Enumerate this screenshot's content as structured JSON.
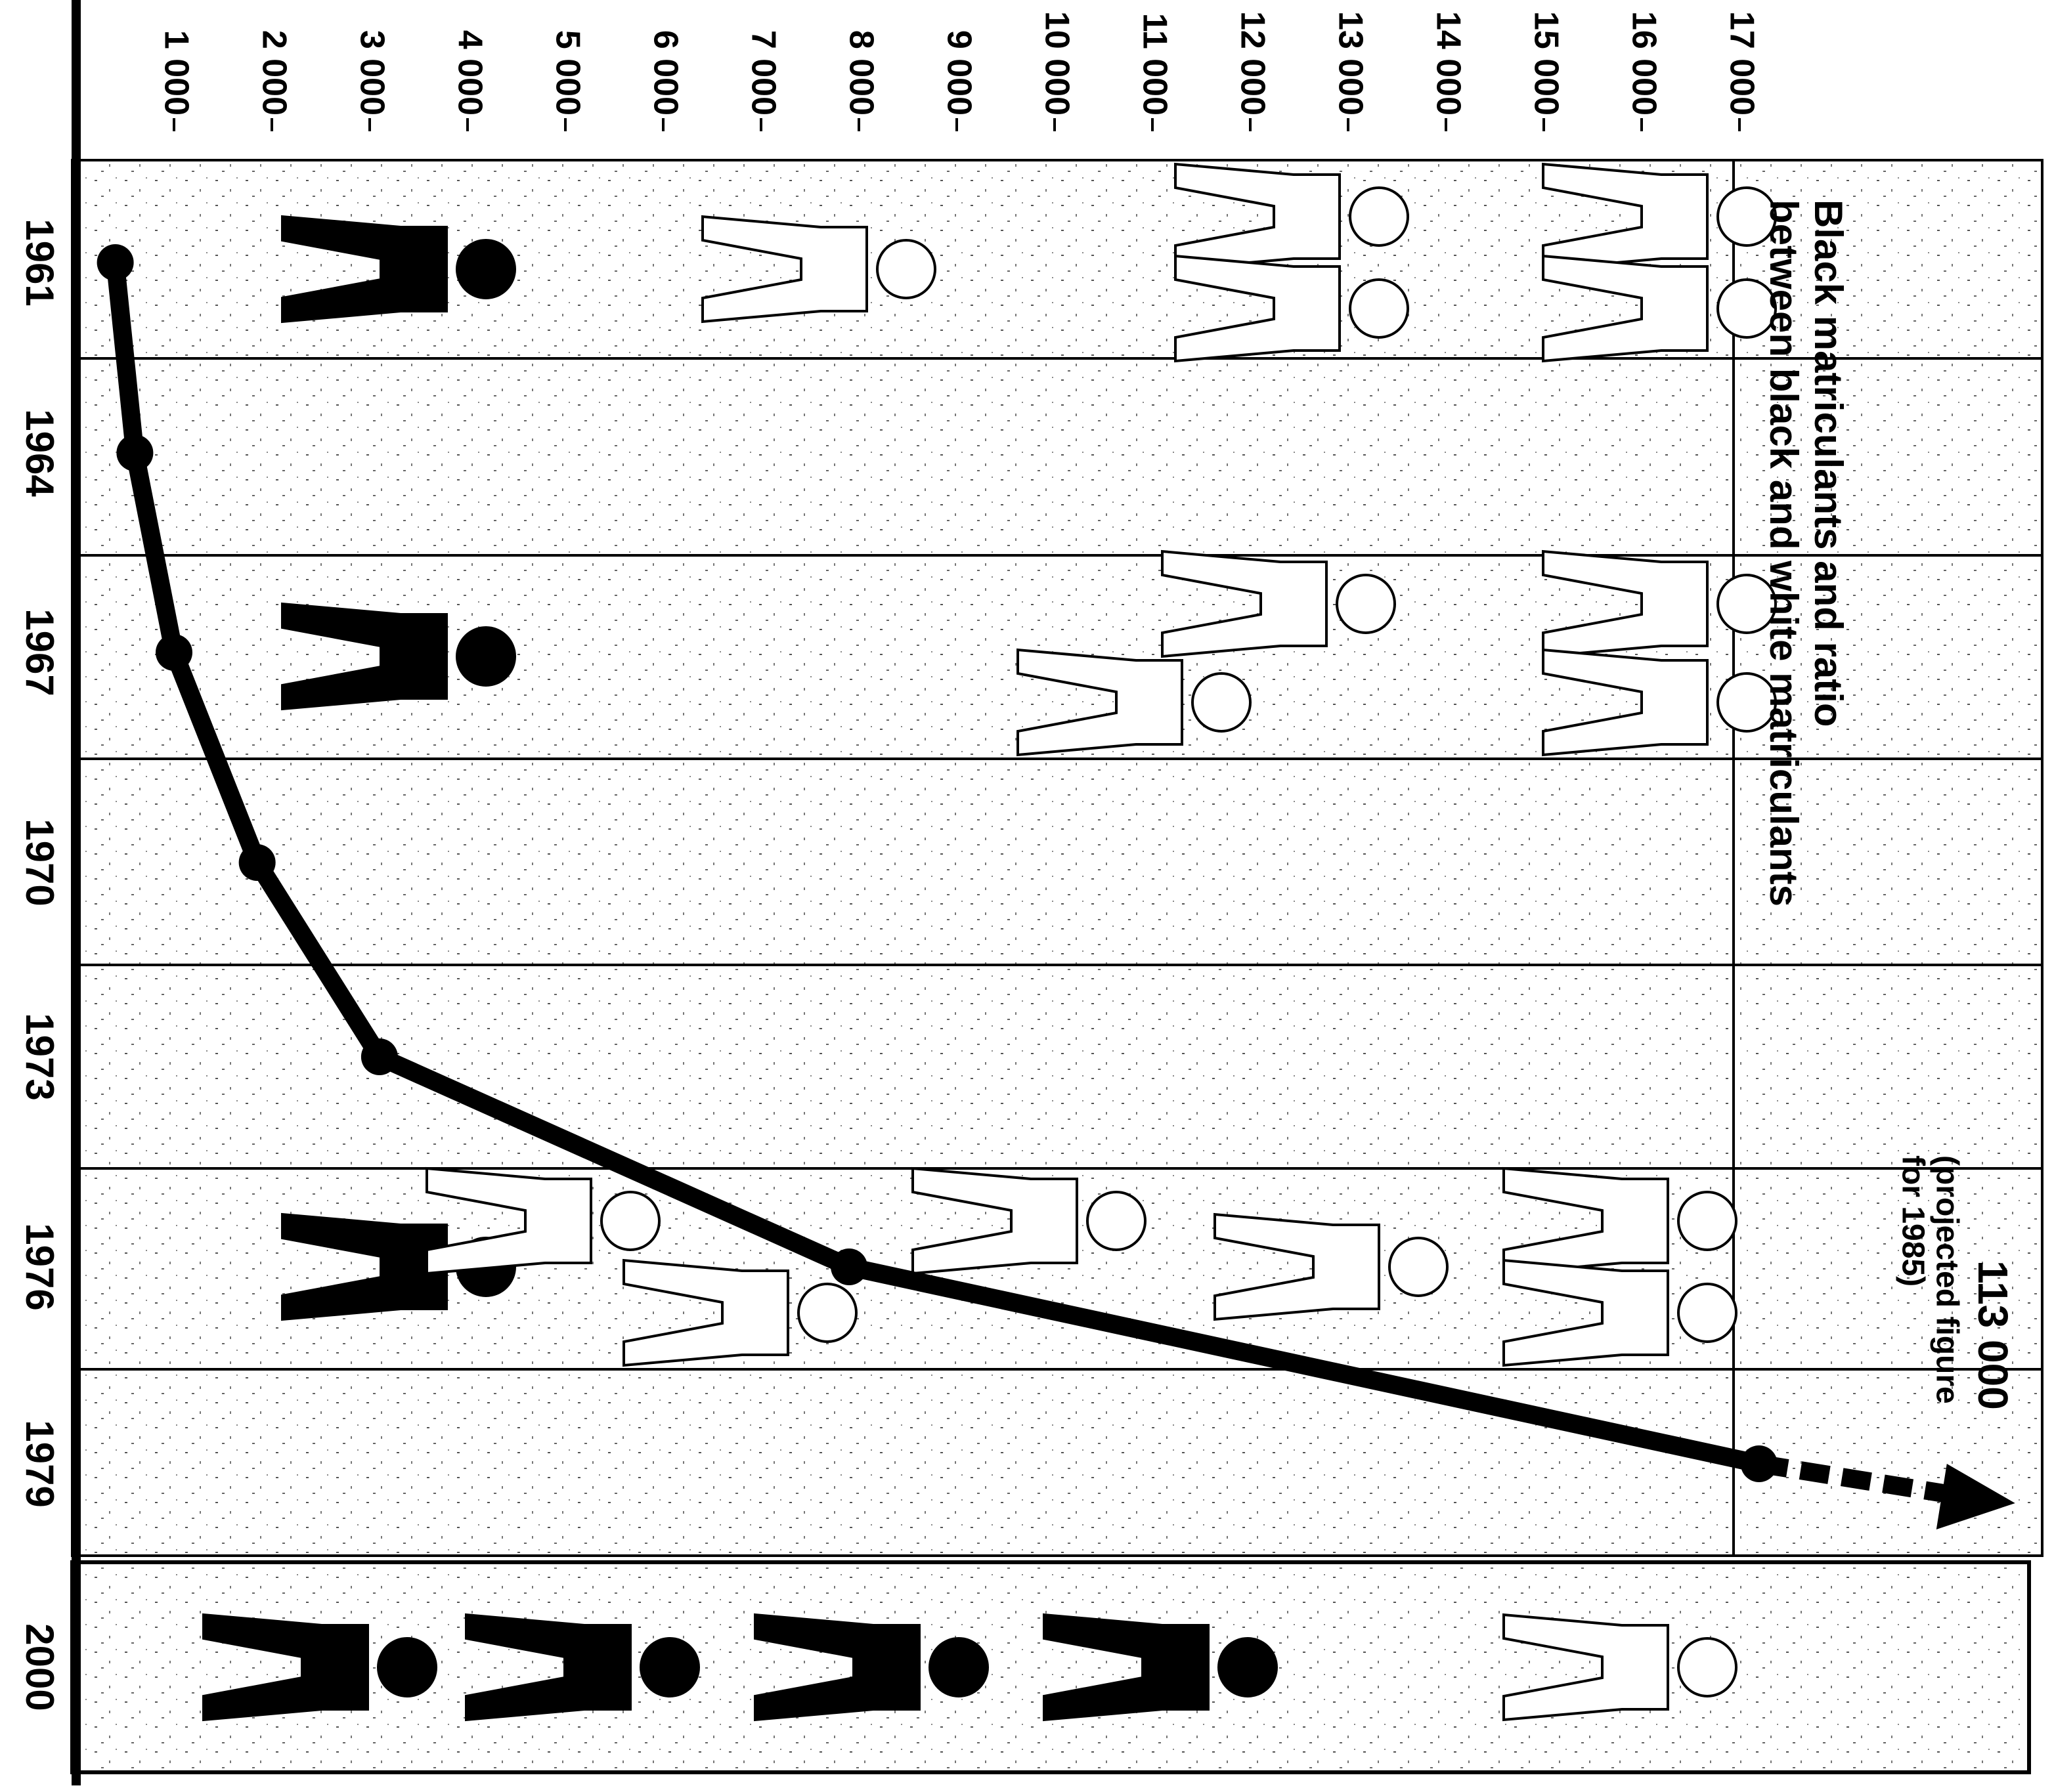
{
  "chart_data": {
    "type": "line",
    "title": "Black matriculants and ratio",
    "subtitle": "between black and white matriculants",
    "categories": [
      "1961",
      "1964",
      "1967",
      "1970",
      "1973",
      "1976",
      "1979",
      "2000"
    ],
    "values": [
      400,
      600,
      1000,
      1850,
      3100,
      7900,
      17200,
      null
    ],
    "color": "#000000",
    "ylim": [
      0,
      20000
    ],
    "yticks": [
      {
        "value": 1000,
        "label": "1 000"
      },
      {
        "value": 2000,
        "label": "2 000"
      },
      {
        "value": 3000,
        "label": "3 000"
      },
      {
        "value": 4000,
        "label": "4 000"
      },
      {
        "value": 5000,
        "label": "5 000"
      },
      {
        "value": 6000,
        "label": "6 000"
      },
      {
        "value": 7000,
        "label": "7 000"
      },
      {
        "value": 8000,
        "label": "8 000"
      },
      {
        "value": 9000,
        "label": "9 000"
      },
      {
        "value": 10000,
        "label": "10 000"
      },
      {
        "value": 11000,
        "label": "11 000"
      },
      {
        "value": 12000,
        "label": "12 000"
      },
      {
        "value": 13000,
        "label": "13 000"
      },
      {
        "value": 14000,
        "label": "14 000"
      },
      {
        "value": 15000,
        "label": "15 000"
      },
      {
        "value": 16000,
        "label": "16 000"
      },
      {
        "value": 17000,
        "label": "17 000"
      }
    ],
    "annotation": {
      "value_text": "113 000",
      "line1": "(projected figure",
      "line2": "for 1985)"
    }
  }
}
